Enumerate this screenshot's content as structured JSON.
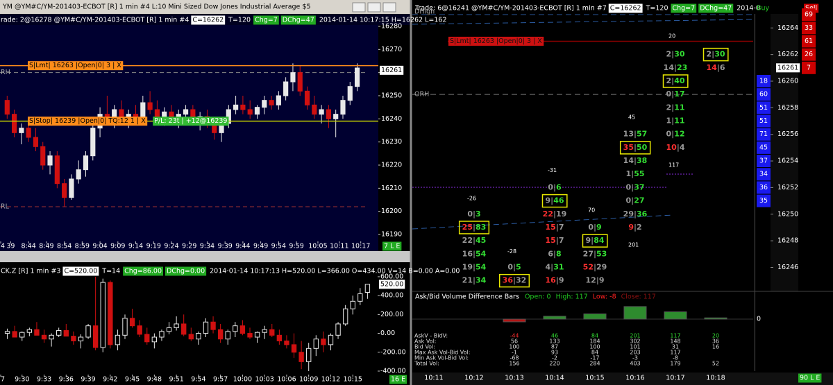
{
  "top_chart": {
    "type": "candlestick",
    "window_title": "YM  @YM#C/YM-201403-ECBOT [R]  1 min  #4  L:10  Mini Sized Dow Jones Industrial Average $5",
    "info_prefix": "rade: 2@16278 @YM#C/YM-201403-ECBOT [R]  1 min  #4",
    "tags": [
      "C=16262",
      "T=120",
      "Chg=7",
      "DChg=47"
    ],
    "info_tail": "2014-01-14 10:17:15 H=16262 L=162",
    "orders": [
      {
        "label": "S|Lmt| 16263 |Open|0| 3 | X",
        "price": 16263,
        "color": "#ff8c1a"
      },
      {
        "label": "S|Stop| 16239 |Open|0| TQ:12 1 | X",
        "price": 16239,
        "color": "#ff8c1a"
      }
    ],
    "pl_label": "P/L: 23t | +12@16239",
    "levels": [
      {
        "label": "RH",
        "value": 16260
      },
      {
        "label": "RL",
        "value": 16202
      }
    ],
    "last": 16261,
    "corner": "7 L E",
    "up_color": "#e8e8e8",
    "down_color": "#d01010",
    "hollow_up": false,
    "xlim": [
      "8:36",
      "10:19"
    ],
    "xticks": [
      {
        "value": "8:34",
        "label": "4"
      },
      {
        "value": "8:39",
        "label": "39"
      },
      "8:44",
      "8:49",
      "8:54",
      "8:59",
      "9:04",
      "9:09",
      "9:14",
      "9:19",
      "9:24",
      "9:29",
      "9:34",
      "9:39",
      "9:44",
      "9:49",
      "9:54",
      "9:59",
      "10:05",
      "10:11",
      "10:17"
    ],
    "ylim": [
      16187,
      16283
    ],
    "yticks": [
      16190,
      16200,
      16210,
      16220,
      16230,
      16240,
      16250,
      16260,
      16270,
      16280
    ],
    "candles": {
      "time": [
        "8:38",
        "8:40",
        "8:42",
        "8:44",
        "8:46",
        "8:48",
        "8:50",
        "8:52",
        "8:54",
        "8:56",
        "8:58",
        "9:00",
        "9:02",
        "9:04",
        "9:06",
        "9:08",
        "9:10",
        "9:12",
        "9:14",
        "9:16",
        "9:18",
        "9:20",
        "9:22",
        "9:24",
        "9:26",
        "9:28",
        "9:30",
        "9:32",
        "9:34",
        "9:36",
        "9:38",
        "9:40",
        "9:42",
        "9:44",
        "9:46",
        "9:48",
        "9:50",
        "9:52",
        "9:54",
        "9:56",
        "9:58",
        "10:00",
        "10:02",
        "10:04",
        "10:06",
        "10:08",
        "10:10",
        "10:12",
        "10:14",
        "10:16"
      ],
      "open": [
        16248,
        16242,
        16234,
        16236,
        16232,
        16228,
        16220,
        16224,
        16212,
        16206,
        16214,
        16218,
        16224,
        16236,
        16242,
        16240,
        16244,
        16240,
        16242,
        16239,
        16247,
        16244,
        16241,
        16243,
        16240,
        16242,
        16244,
        16239,
        16241,
        16238,
        16234,
        16238,
        16244,
        16246,
        16244,
        16242,
        16245,
        16248,
        16246,
        16250,
        16256,
        16260,
        16252,
        16246,
        16242,
        16244,
        16240,
        16242,
        16248,
        16254
      ],
      "high": [
        16250,
        16244,
        16238,
        16241,
        16236,
        16230,
        16226,
        16226,
        16214,
        16216,
        16222,
        16226,
        16238,
        16245,
        16250,
        16246,
        16248,
        16244,
        16246,
        16250,
        16252,
        16248,
        16245,
        16246,
        16244,
        16246,
        16246,
        16243,
        16244,
        16240,
        16240,
        16246,
        16250,
        16250,
        16248,
        16246,
        16250,
        16250,
        16252,
        16258,
        16264,
        16263,
        16254,
        16250,
        16246,
        16246,
        16244,
        16250,
        16256,
        16264
      ],
      "low": [
        16240,
        16232,
        16229,
        16230,
        16226,
        16218,
        16216,
        16210,
        16202,
        16205,
        16212,
        16215,
        16222,
        16232,
        16238,
        16236,
        16238,
        16236,
        16238,
        16238,
        16242,
        16240,
        16237,
        16238,
        16236,
        16239,
        16237,
        16235,
        16236,
        16231,
        16230,
        16236,
        16242,
        16242,
        16240,
        16240,
        16242,
        16244,
        16244,
        16248,
        16252,
        16250,
        16244,
        16240,
        16238,
        16236,
        16232,
        16240,
        16246,
        16252
      ],
      "close": [
        16242,
        16234,
        16236,
        16232,
        16228,
        16220,
        16224,
        16212,
        16206,
        16214,
        16218,
        16224,
        16236,
        16242,
        16240,
        16244,
        16240,
        16242,
        16239,
        16247,
        16244,
        16241,
        16243,
        16240,
        16242,
        16244,
        16239,
        16241,
        16238,
        16234,
        16238,
        16244,
        16246,
        16244,
        16242,
        16245,
        16248,
        16246,
        16250,
        16256,
        16260,
        16252,
        16246,
        16242,
        16244,
        16240,
        16242,
        16248,
        16254,
        16262
      ]
    }
  },
  "bottom_chart": {
    "type": "candlestick",
    "info_prefix": "CK.Z [R]  1 min  #3",
    "tags": [
      "C=520.00",
      "T=14",
      "Chg=86.00",
      "DChg=0.00"
    ],
    "info_tail": "2014-01-14 10:17:13 H=520.00 L=366.00 O=434.00 V=14 B=0.00 A=0.00",
    "last": {
      "value": 520,
      "label": "520.00"
    },
    "corner": "16 E",
    "up_color": "#e8e8e8",
    "down_color": "#d01010",
    "hollow_up": true,
    "xlim": [
      "9:27",
      "10:18"
    ],
    "xticks": [
      {
        "value": "9:27",
        "label": "7"
      },
      "9:30",
      "9:33",
      "9:36",
      "9:39",
      "9:42",
      "9:45",
      "9:48",
      "9:51",
      "9:54",
      "9:57",
      "10:00",
      "10:03",
      "10:06",
      "10:09",
      "10:12",
      "10:15"
    ],
    "ylim": [
      -437,
      651
    ],
    "yticks": [
      {
        "value": 600,
        "label": "600.00"
      },
      {
        "value": 400,
        "label": "400.00"
      },
      {
        "value": 200,
        "label": "200.00"
      },
      {
        "value": 0,
        "label": "0.00"
      },
      {
        "value": -200,
        "label": "-200.00"
      },
      {
        "value": -400,
        "label": "-400.00"
      }
    ],
    "candles": {
      "time": [
        "9:28",
        "9:29",
        "9:30",
        "9:31",
        "9:32",
        "9:33",
        "9:34",
        "9:35",
        "9:36",
        "9:37",
        "9:38",
        "9:39",
        "9:40",
        "9:41",
        "9:42",
        "9:43",
        "9:44",
        "9:45",
        "9:46",
        "9:47",
        "9:48",
        "9:49",
        "9:50",
        "9:51",
        "9:52",
        "9:53",
        "9:54",
        "9:55",
        "9:56",
        "9:57",
        "9:58",
        "9:59",
        "10:00",
        "10:01",
        "10:02",
        "10:03",
        "10:04",
        "10:05",
        "10:06",
        "10:07",
        "10:08",
        "10:09",
        "10:10",
        "10:11",
        "10:12",
        "10:13",
        "10:14",
        "10:15",
        "10:16",
        "10:17"
      ],
      "open": [
        0,
        20,
        -40,
        10,
        40,
        -20,
        -60,
        -20,
        30,
        -30,
        -80,
        -40,
        80,
        -150,
        540,
        -120,
        -20,
        160,
        80,
        -10,
        -90,
        -40,
        20,
        60,
        100,
        -10,
        -60,
        0,
        120,
        40,
        -60,
        20,
        80,
        0,
        -40,
        10,
        40,
        -20,
        -80,
        -120,
        -200,
        -300,
        -160,
        -60,
        -120,
        -20,
        100,
        260,
        340,
        434
      ],
      "high": [
        50,
        80,
        20,
        60,
        120,
        40,
        0,
        60,
        100,
        20,
        -10,
        100,
        600,
        580,
        560,
        40,
        200,
        260,
        140,
        60,
        0,
        40,
        120,
        180,
        200,
        60,
        20,
        160,
        180,
        100,
        40,
        120,
        140,
        60,
        20,
        80,
        100,
        40,
        -20,
        0,
        -80,
        -100,
        -20,
        20,
        0,
        120,
        300,
        400,
        480,
        520
      ],
      "low": [
        -60,
        -20,
        -80,
        -30,
        0,
        -100,
        -140,
        -40,
        -20,
        -120,
        -160,
        -60,
        -180,
        -200,
        -160,
        -180,
        -60,
        60,
        -40,
        -120,
        -160,
        -80,
        -10,
        30,
        -30,
        -80,
        -120,
        -40,
        0,
        -100,
        -120,
        -40,
        -20,
        -60,
        -100,
        -60,
        -40,
        -120,
        -160,
        -260,
        -380,
        -400,
        -240,
        -200,
        -180,
        -60,
        80,
        200,
        300,
        366
      ],
      "close": [
        20,
        -40,
        10,
        40,
        -20,
        -60,
        -20,
        30,
        -30,
        -80,
        -40,
        80,
        -150,
        540,
        -120,
        -20,
        160,
        80,
        -10,
        -90,
        -40,
        20,
        60,
        100,
        -10,
        -60,
        0,
        120,
        40,
        -60,
        20,
        80,
        0,
        -40,
        10,
        40,
        -20,
        -80,
        -120,
        -200,
        -300,
        -160,
        -60,
        -120,
        -20,
        100,
        260,
        340,
        420,
        520
      ]
    }
  },
  "footprint": {
    "type": "footprint",
    "title_prefix": "Trade: 6@16241 @YM#C/YM-201403-ECBOT [R]  1 min  #7",
    "tags": [
      "C=16262",
      "T=120",
      "Chg=7",
      "DChg=47"
    ],
    "title_tail": "2014-0",
    "buy_header": "Buy",
    "sell_header": "Sell",
    "ylim": [
      16244.2,
      16266.1
    ],
    "yticks": [
      16246,
      16248,
      16250,
      16252,
      16254,
      16256,
      16258,
      16260,
      16262,
      16264
    ],
    "last": 16261,
    "orders": [
      {
        "label": "S|Lmt| 16263 |Open|0| 3 | X",
        "price": 16263,
        "color": "#cc1111"
      }
    ],
    "levels": [
      {
        "label": "DHigh",
        "value": 16265
      },
      {
        "label": "ORH",
        "value": 16259
      }
    ],
    "sell": {
      "prices": [
        16265,
        16264,
        16263,
        16262,
        16261
      ],
      "values": [
        69,
        33,
        61,
        26,
        7
      ]
    },
    "buy": {
      "prices": [
        16260,
        16259,
        16258,
        16257,
        16256,
        16255,
        16254,
        16253,
        16252,
        16251
      ],
      "values": [
        18,
        60,
        51,
        51,
        71,
        45,
        37,
        34,
        36,
        35
      ]
    },
    "columns": [
      {
        "time": "10:11",
        "cells": [],
        "notes": []
      },
      {
        "time": "10:12",
        "cells": [
          {
            "price": 16250,
            "bid": 0,
            "ask": 3
          },
          {
            "price": 16249,
            "bid": 25,
            "ask": 83,
            "boxed": true
          },
          {
            "price": 16248,
            "bid": 22,
            "ask": 45
          },
          {
            "price": 16247,
            "bid": 16,
            "ask": 54
          },
          {
            "price": 16246,
            "bid": 19,
            "ask": 54
          },
          {
            "price": 16245,
            "bid": 21,
            "ask": 34
          }
        ],
        "notes": [
          {
            "value": -26,
            "price": 16251.2
          }
        ]
      },
      {
        "time": "10:13",
        "cells": [
          {
            "price": 16246,
            "bid": 0,
            "ask": 5
          },
          {
            "price": 16245,
            "bid": 36,
            "ask": 32,
            "boxed": true
          }
        ],
        "notes": [
          {
            "value": -28,
            "price": 16247.2
          }
        ]
      },
      {
        "time": "10:14",
        "cells": [
          {
            "price": 16252,
            "bid": 0,
            "ask": 6
          },
          {
            "price": 16251,
            "bid": 9,
            "ask": 46,
            "boxed": true
          },
          {
            "price": 16250,
            "bid": 22,
            "ask": 19
          },
          {
            "price": 16249,
            "bid": 15,
            "ask": 7
          },
          {
            "price": 16248,
            "bid": 15,
            "ask": 7
          },
          {
            "price": 16247,
            "bid": 6,
            "ask": 8
          },
          {
            "price": 16246,
            "bid": 4,
            "ask": 31
          },
          {
            "price": 16245,
            "bid": 16,
            "ask": 9
          }
        ],
        "notes": [
          {
            "value": -31,
            "price": 16253.3
          }
        ]
      },
      {
        "time": "10:15",
        "cells": [
          {
            "price": 16249,
            "bid": 0,
            "ask": 9
          },
          {
            "price": 16248,
            "bid": 9,
            "ask": 84,
            "boxed": true
          },
          {
            "price": 16247,
            "bid": 27,
            "ask": 53
          },
          {
            "price": 16246,
            "bid": 52,
            "ask": 29
          },
          {
            "price": 16245,
            "bid": 12,
            "ask": 9
          }
        ],
        "notes": [
          {
            "value": 70,
            "price": 16250.3
          }
        ]
      },
      {
        "time": "10:16",
        "cells": [
          {
            "price": 16256,
            "bid": 13,
            "ask": 57
          },
          {
            "price": 16255,
            "bid": 35,
            "ask": 50,
            "boxed": true
          },
          {
            "price": 16254,
            "bid": 14,
            "ask": 38
          },
          {
            "price": 16253,
            "bid": 1,
            "ask": 55
          },
          {
            "price": 16252,
            "bid": 0,
            "ask": 37
          },
          {
            "price": 16251,
            "bid": 0,
            "ask": 27
          },
          {
            "price": 16250,
            "bid": 29,
            "ask": 36
          },
          {
            "price": 16249,
            "bid": 9,
            "ask": 2
          }
        ],
        "notes": [
          {
            "value": 45,
            "price": 16257.3
          },
          {
            "value": 201,
            "price": 16247.7
          }
        ]
      },
      {
        "time": "10:17",
        "cells": [
          {
            "price": 16262,
            "bid": 2,
            "ask": 30
          },
          {
            "price": 16261,
            "bid": 14,
            "ask": 23
          },
          {
            "price": 16260,
            "bid": 2,
            "ask": 40,
            "boxed": true
          },
          {
            "price": 16259,
            "bid": 0,
            "ask": 17
          },
          {
            "price": 16258,
            "bid": 2,
            "ask": 11
          },
          {
            "price": 16257,
            "bid": 1,
            "ask": 11
          },
          {
            "price": 16256,
            "bid": 0,
            "ask": 12
          },
          {
            "price": 16255,
            "bid": 10,
            "ask": 4
          }
        ],
        "notes": [
          {
            "value": 20,
            "price": 16263.4
          },
          {
            "value": 117,
            "price": 16253.7
          }
        ]
      },
      {
        "time": "10:18",
        "cells": [
          {
            "price": 16262,
            "bid": 2,
            "ask": 30,
            "boxed": true
          },
          {
            "price": 16261,
            "bid": 14,
            "ask": 6
          }
        ],
        "notes": []
      }
    ],
    "corner": "90 L E",
    "zero": 0,
    "study": {
      "title": "Ask/Bid Volume Difference Bars",
      "stats": [
        "Open: 0",
        "High: 117",
        "Low: -8",
        "Close: 117"
      ],
      "rows": [
        {
          "label": "AskV - BidV:",
          "values": [
            null,
            null,
            -44,
            46,
            84,
            201,
            117,
            20
          ]
        },
        {
          "label": "Ask Vol:",
          "values": [
            null,
            null,
            56,
            133,
            184,
            302,
            148,
            36
          ]
        },
        {
          "label": "Bid Vol:",
          "values": [
            null,
            null,
            100,
            87,
            100,
            101,
            31,
            16
          ]
        },
        {
          "label": "Max Ask Vol-Bid Vol:",
          "values": [
            null,
            null,
            -1,
            93,
            84,
            203,
            117,
            null
          ]
        },
        {
          "label": "Min Ask Vol-Bid Vol:",
          "values": [
            null,
            null,
            -68,
            -2,
            -17,
            -3,
            -8,
            null
          ]
        },
        {
          "label": "Total Vol:",
          "values": [
            null,
            null,
            156,
            220,
            284,
            403,
            179,
            52
          ]
        }
      ]
    }
  }
}
